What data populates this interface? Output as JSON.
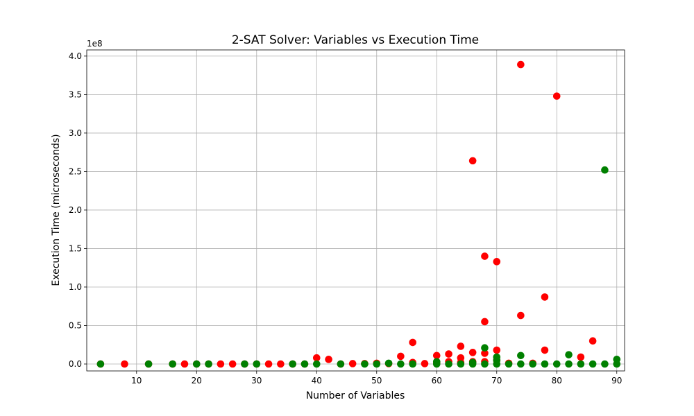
{
  "chart_data": {
    "type": "scatter",
    "title": "2-SAT Solver: Variables vs Execution Time",
    "xlabel": "Number of Variables",
    "ylabel": "Execution Time (microseconds)",
    "y_offset_label": "1e8",
    "y_scale": 100000000,
    "xlim": [
      1.7,
      91.3
    ],
    "ylim": [
      -9000000,
      408000000
    ],
    "xticks": [
      10,
      20,
      30,
      40,
      50,
      60,
      70,
      80,
      90
    ],
    "yticks": [
      0,
      50000000,
      100000000,
      150000000,
      200000000,
      250000000,
      300000000,
      350000000,
      400000000
    ],
    "ytick_labels": [
      "0.0",
      "0.5",
      "1.0",
      "1.5",
      "2.0",
      "2.5",
      "3.0",
      "3.5",
      "4.0"
    ],
    "grid": true,
    "legend": "none",
    "series": [
      {
        "color": "#ff0000",
        "points": [
          [
            4,
            0
          ],
          [
            8,
            0
          ],
          [
            12,
            0
          ],
          [
            16,
            0
          ],
          [
            18,
            0
          ],
          [
            20,
            0
          ],
          [
            22,
            0
          ],
          [
            24,
            0
          ],
          [
            26,
            0
          ],
          [
            28,
            0
          ],
          [
            30,
            0
          ],
          [
            32,
            0
          ],
          [
            34,
            0
          ],
          [
            36,
            0
          ],
          [
            38,
            0
          ],
          [
            40,
            8000000
          ],
          [
            42,
            6000000
          ],
          [
            44,
            0
          ],
          [
            46,
            500000
          ],
          [
            48,
            500000
          ],
          [
            50,
            1000000
          ],
          [
            52,
            500000
          ],
          [
            54,
            10000000
          ],
          [
            56,
            28000000
          ],
          [
            56,
            2000000
          ],
          [
            58,
            500000
          ],
          [
            60,
            11000000
          ],
          [
            60,
            2000000
          ],
          [
            62,
            13000000
          ],
          [
            62,
            3000000
          ],
          [
            64,
            23000000
          ],
          [
            64,
            8000000
          ],
          [
            64,
            2000000
          ],
          [
            66,
            264000000
          ],
          [
            66,
            15000000
          ],
          [
            66,
            3000000
          ],
          [
            68,
            140000000
          ],
          [
            68,
            55000000
          ],
          [
            68,
            14000000
          ],
          [
            68,
            3000000
          ],
          [
            70,
            133000000
          ],
          [
            70,
            18000000
          ],
          [
            70,
            5000000
          ],
          [
            72,
            1000000
          ],
          [
            74,
            389000000
          ],
          [
            74,
            63000000
          ],
          [
            76,
            1000000
          ],
          [
            78,
            87000000
          ],
          [
            78,
            18000000
          ],
          [
            80,
            348000000
          ],
          [
            84,
            9000000
          ],
          [
            86,
            30000000
          ]
        ]
      },
      {
        "color": "#008000",
        "points": [
          [
            4,
            0
          ],
          [
            12,
            0
          ],
          [
            16,
            0
          ],
          [
            20,
            0
          ],
          [
            22,
            0
          ],
          [
            28,
            0
          ],
          [
            30,
            0
          ],
          [
            36,
            0
          ],
          [
            38,
            0
          ],
          [
            40,
            0
          ],
          [
            44,
            0
          ],
          [
            48,
            0
          ],
          [
            50,
            0
          ],
          [
            52,
            1000000
          ],
          [
            54,
            0
          ],
          [
            56,
            0
          ],
          [
            60,
            0
          ],
          [
            60,
            3000000
          ],
          [
            62,
            0
          ],
          [
            64,
            0
          ],
          [
            66,
            0
          ],
          [
            66,
            2000000
          ],
          [
            68,
            0
          ],
          [
            68,
            21000000
          ],
          [
            70,
            0
          ],
          [
            70,
            5000000
          ],
          [
            70,
            9000000
          ],
          [
            72,
            0
          ],
          [
            74,
            0
          ],
          [
            74,
            11000000
          ],
          [
            76,
            0
          ],
          [
            78,
            0
          ],
          [
            80,
            0
          ],
          [
            82,
            0
          ],
          [
            82,
            12000000
          ],
          [
            84,
            0
          ],
          [
            86,
            0
          ],
          [
            88,
            0
          ],
          [
            88,
            252000000
          ],
          [
            90,
            0
          ],
          [
            90,
            6000000
          ]
        ]
      }
    ]
  }
}
